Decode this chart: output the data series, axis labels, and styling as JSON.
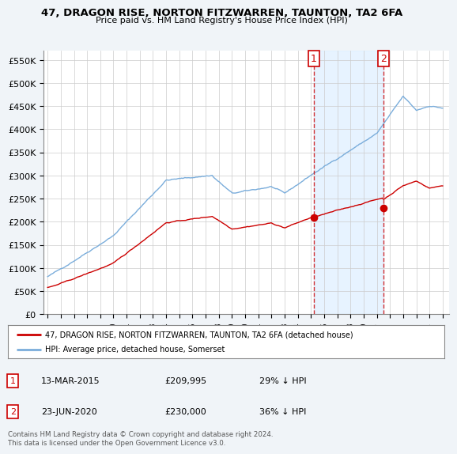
{
  "title": "47, DRAGON RISE, NORTON FITZWARREN, TAUNTON, TA2 6FA",
  "subtitle": "Price paid vs. HM Land Registry's House Price Index (HPI)",
  "legend_label_red": "47, DRAGON RISE, NORTON FITZWARREN, TAUNTON, TA2 6FA (detached house)",
  "legend_label_blue": "HPI: Average price, detached house, Somerset",
  "footer": "Contains HM Land Registry data © Crown copyright and database right 2024.\nThis data is licensed under the Open Government Licence v3.0.",
  "transaction1_date": "13-MAR-2015",
  "transaction1_price": "£209,995",
  "transaction1_hpi": "29% ↓ HPI",
  "transaction1_x": 2015.2,
  "transaction1_y": 209995,
  "transaction2_date": "23-JUN-2020",
  "transaction2_price": "£230,000",
  "transaction2_hpi": "36% ↓ HPI",
  "transaction2_x": 2020.48,
  "transaction2_y": 230000,
  "ylim": [
    0,
    570000
  ],
  "yticks": [
    0,
    50000,
    100000,
    150000,
    200000,
    250000,
    300000,
    350000,
    400000,
    450000,
    500000,
    550000
  ],
  "xlim_start": 1994.7,
  "xlim_end": 2025.5,
  "xtick_years": [
    1995,
    1996,
    1997,
    1998,
    1999,
    2000,
    2001,
    2002,
    2003,
    2004,
    2005,
    2006,
    2007,
    2008,
    2009,
    2010,
    2011,
    2012,
    2013,
    2014,
    2015,
    2016,
    2017,
    2018,
    2019,
    2020,
    2021,
    2022,
    2023,
    2024,
    2025
  ],
  "red_color": "#cc0000",
  "blue_color": "#7aaddb",
  "shade_color": "#ddeeff",
  "vline_color": "#cc0000",
  "background_color": "#f0f4f8",
  "plot_bg_color": "#ffffff",
  "grid_color": "#cccccc"
}
